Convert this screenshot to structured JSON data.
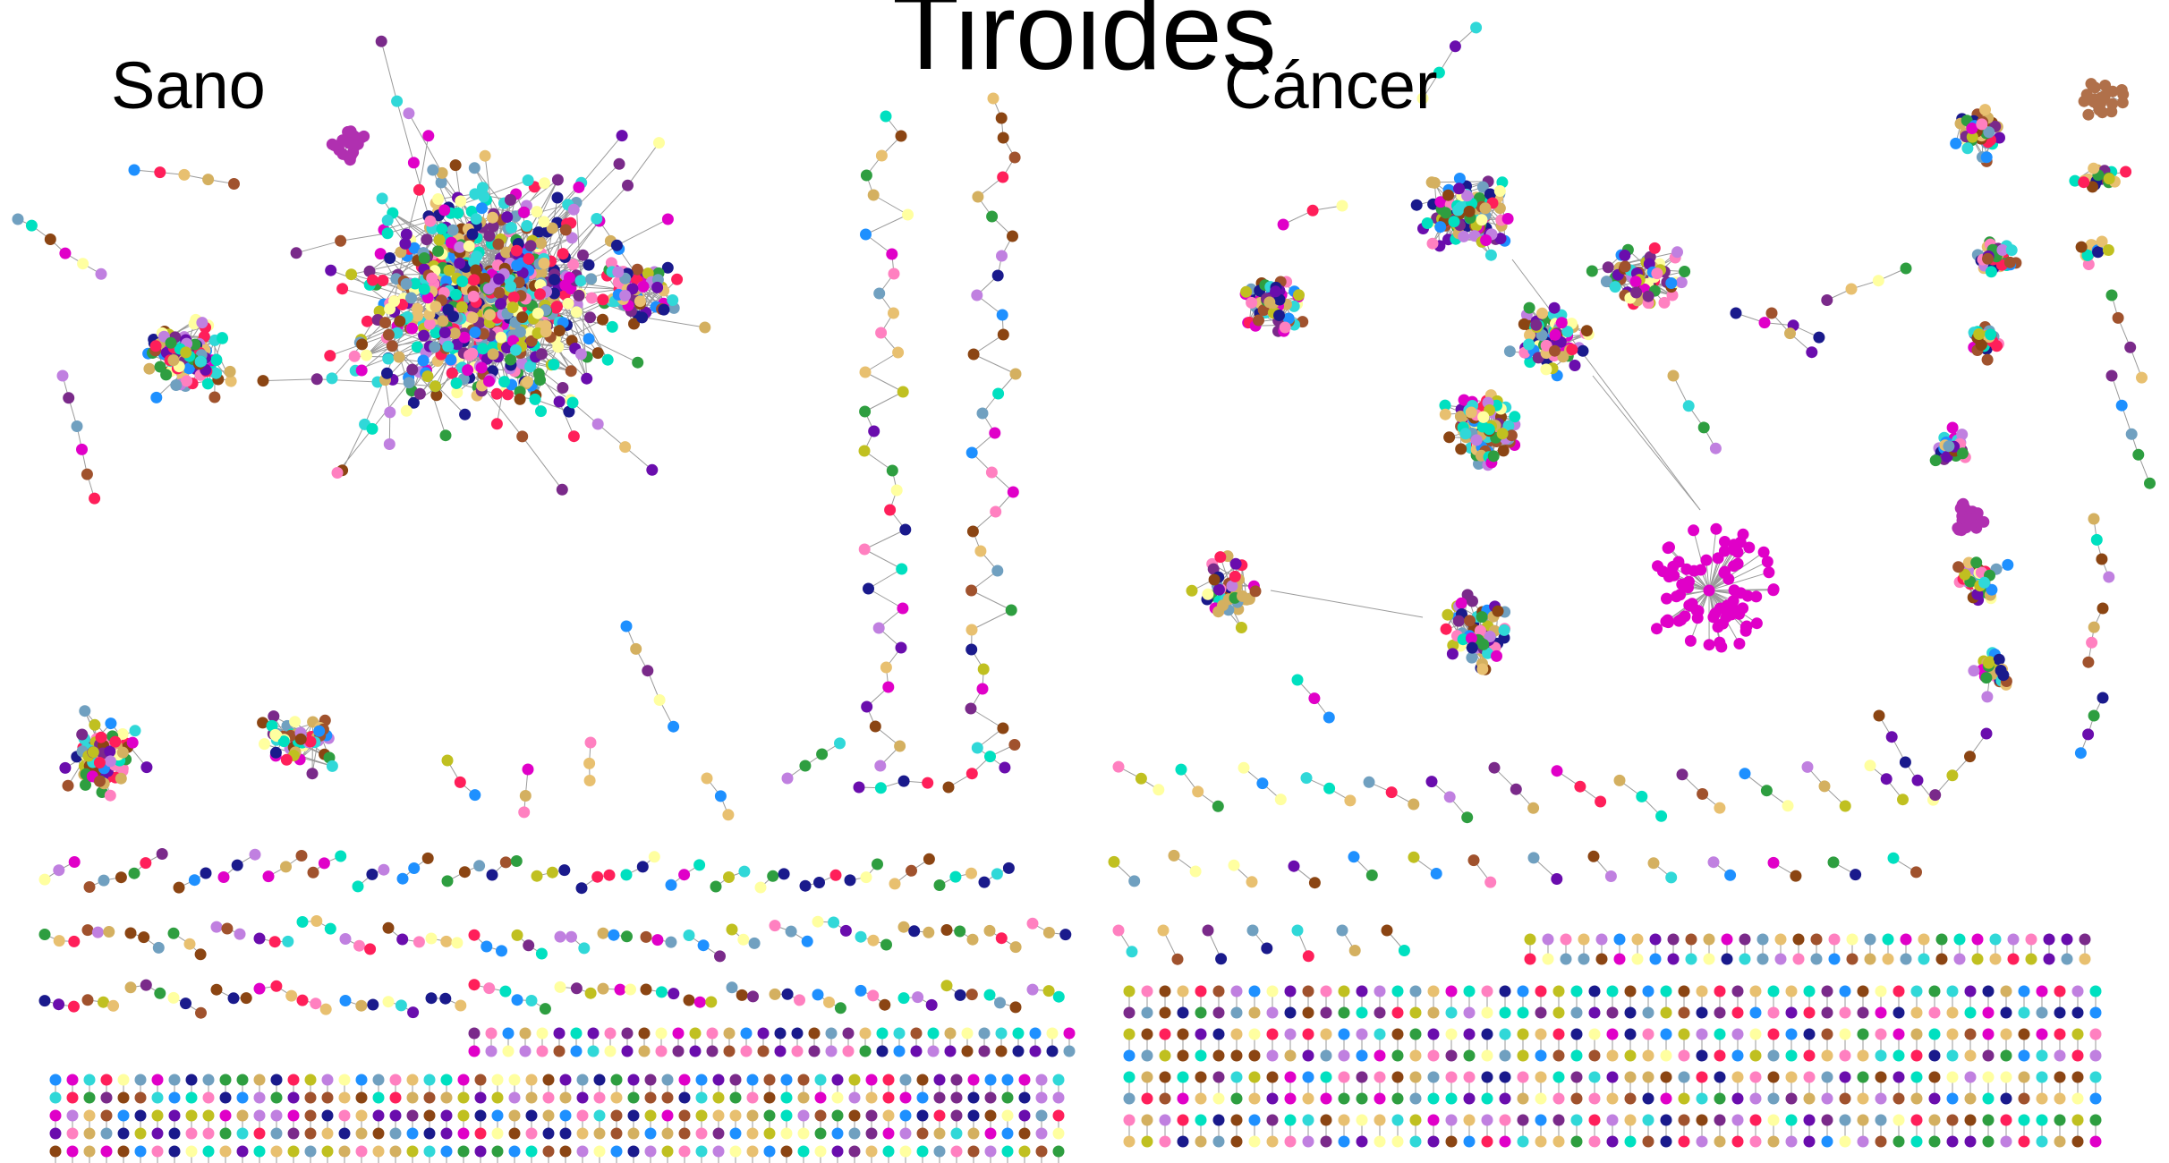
{
  "figure": {
    "title": "Tiroides",
    "panels": [
      {
        "label": "Sano"
      },
      {
        "label": "Cáncer"
      }
    ]
  },
  "palette": [
    "#1a1a8c",
    "#7a2a8a",
    "#e8c070",
    "#1e90ff",
    "#ff1f5a",
    "#30d8d8",
    "#c080e0",
    "#2e9e40",
    "#d4b060",
    "#ffffa0",
    "#a0522d",
    "#70a0c0",
    "#ff80c0",
    "#c0c020",
    "#6a0dad",
    "#e000c8",
    "#00e0c0",
    "#8b4513"
  ],
  "edge_color": "#9a9a9a"
}
